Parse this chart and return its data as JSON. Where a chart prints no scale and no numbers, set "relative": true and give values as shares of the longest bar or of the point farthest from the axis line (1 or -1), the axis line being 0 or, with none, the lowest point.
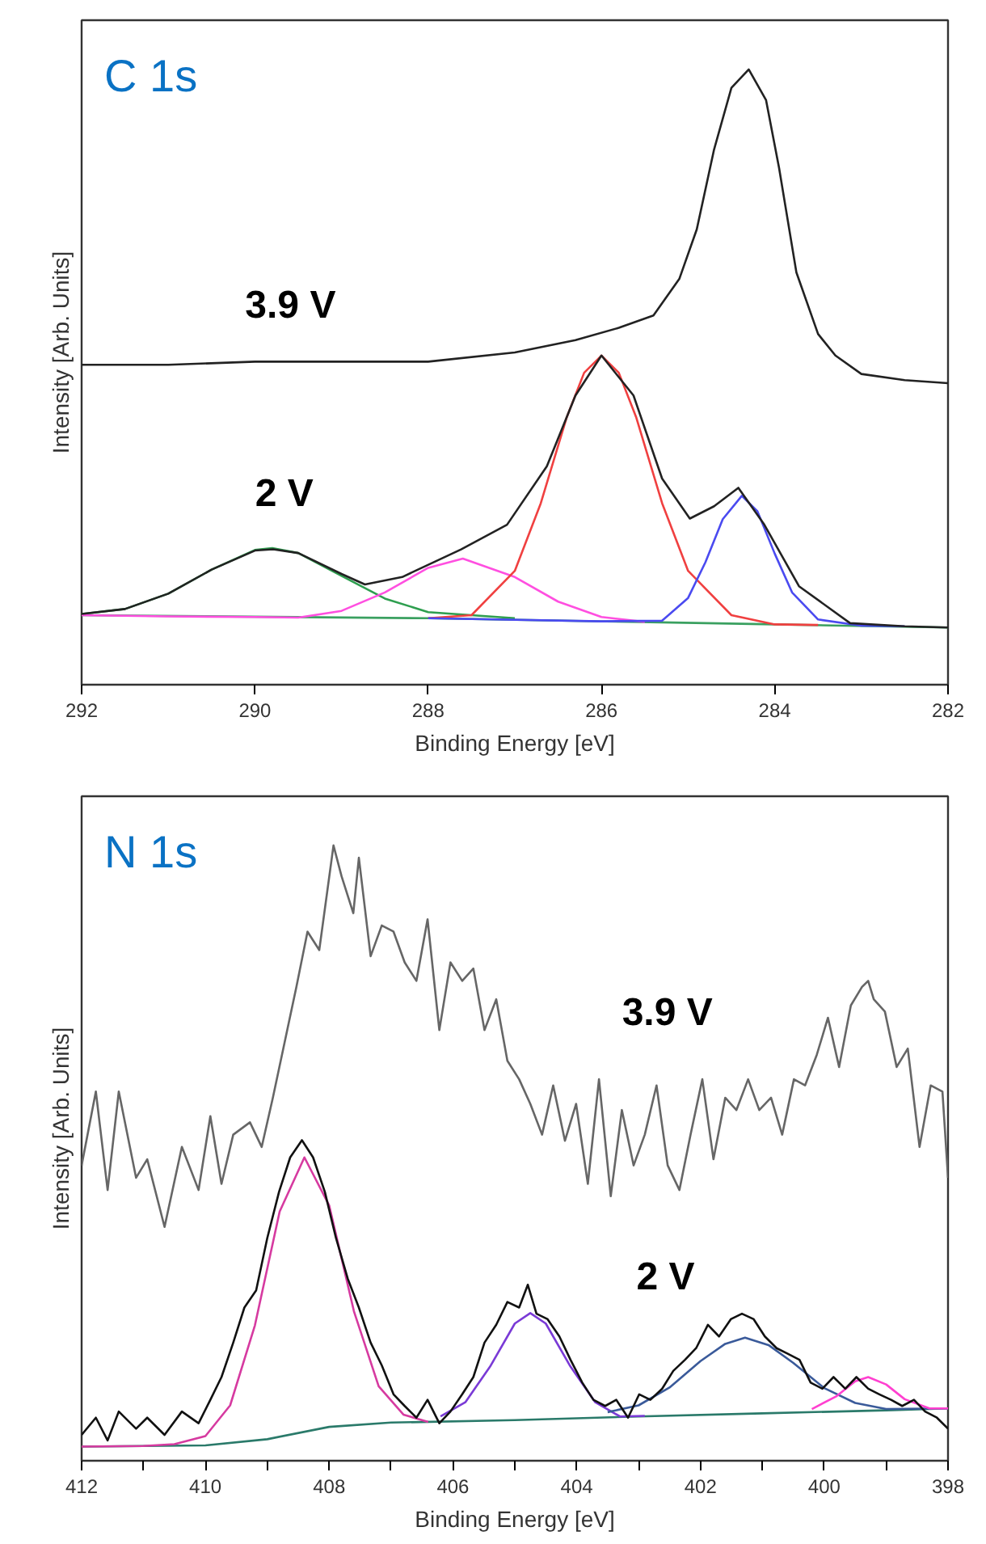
{
  "chart_data": [
    {
      "type": "line",
      "title": "C 1s",
      "xlabel": "Binding Energy [eV]",
      "ylabel": "Intensity [Arb. Units]",
      "relative": true,
      "tick_labels": "x",
      "xlim": [
        292,
        282
      ],
      "xticks": [
        292,
        290,
        288,
        286,
        284,
        282
      ],
      "series": [
        {
          "color": "#3aa060",
          "x": [
            292,
            288,
            284,
            282
          ],
          "values": [
            0.113,
            0.108,
            0.098,
            0.093
          ]
        },
        {
          "color": "#2e9e4f",
          "x": [
            292,
            291.5,
            291,
            290.5,
            290,
            289.8,
            289.5,
            289,
            288.5,
            288,
            287
          ],
          "values": [
            0.115,
            0.123,
            0.148,
            0.187,
            0.219,
            0.222,
            0.214,
            0.177,
            0.14,
            0.118,
            0.108
          ]
        },
        {
          "color": "#ff4fe0",
          "x": [
            292,
            291,
            290,
            289.5,
            289,
            288.5,
            288,
            287.6,
            287,
            286.5,
            286,
            285.5
          ],
          "values": [
            0.113,
            0.111,
            0.11,
            0.109,
            0.12,
            0.15,
            0.19,
            0.205,
            0.175,
            0.135,
            0.11,
            0.102
          ]
        },
        {
          "color": "#f04040",
          "x": [
            288,
            287.5,
            287,
            286.7,
            286.4,
            286.2,
            286,
            285.8,
            285.6,
            285.3,
            285,
            284.5,
            284,
            283.5
          ],
          "values": [
            0.108,
            0.113,
            0.185,
            0.295,
            0.435,
            0.507,
            0.535,
            0.507,
            0.435,
            0.295,
            0.185,
            0.113,
            0.098,
            0.097
          ]
        },
        {
          "color": "#4a4af0",
          "x": [
            288,
            286,
            285.3,
            285,
            284.8,
            284.6,
            284.38,
            284.2,
            284,
            283.8,
            283.5,
            283,
            282.5
          ],
          "values": [
            0.108,
            0.103,
            0.104,
            0.141,
            0.199,
            0.269,
            0.307,
            0.282,
            0.213,
            0.15,
            0.106,
            0.096,
            0.095
          ]
        },
        {
          "name": "3.9 V",
          "color": "#222222",
          "x": [
            292,
            291,
            290,
            289,
            288,
            287,
            286.3,
            285.8,
            285.4,
            285.1,
            284.9,
            284.7,
            284.5,
            284.3,
            284.1,
            283.95,
            283.75,
            283.5,
            283.3,
            283,
            282.5,
            282
          ],
          "values": [
            0.52,
            0.52,
            0.525,
            0.525,
            0.525,
            0.54,
            0.56,
            0.58,
            0.6,
            0.66,
            0.74,
            0.87,
            0.97,
            1.0,
            0.95,
            0.84,
            0.67,
            0.57,
            0.535,
            0.505,
            0.495,
            0.49
          ]
        },
        {
          "name": "2 V",
          "color": "#222222",
          "x": [
            292,
            291.5,
            291,
            290.5,
            290,
            289.79,
            289.5,
            289,
            288.73,
            288.3,
            287.62,
            287.09,
            286.63,
            286.3,
            286,
            285.63,
            285.3,
            284.98,
            284.7,
            284.42,
            284.12,
            283.72,
            283.13,
            282.5,
            282
          ],
          "values": [
            0.115,
            0.123,
            0.148,
            0.187,
            0.218,
            0.22,
            0.214,
            0.18,
            0.163,
            0.175,
            0.22,
            0.26,
            0.355,
            0.47,
            0.535,
            0.47,
            0.335,
            0.27,
            0.29,
            0.32,
            0.26,
            0.16,
            0.1,
            0.095,
            0.093
          ]
        }
      ]
    },
    {
      "type": "line",
      "title": "N 1s",
      "xlabel": "Binding Energy [eV]",
      "ylabel": "Intensity [Arb. Units]",
      "relative": true,
      "tick_labels": "x",
      "xlim": [
        412,
        398
      ],
      "xticks": [
        412,
        {
          "value": 411,
          "label": null
        },
        410,
        {
          "value": 409,
          "label": null
        },
        408,
        {
          "value": 407,
          "label": null
        },
        406,
        {
          "value": 405,
          "label": null
        },
        404,
        {
          "value": 403,
          "label": null
        },
        402,
        {
          "value": 401,
          "label": null
        },
        400,
        {
          "value": 399,
          "label": null
        },
        398
      ],
      "series": [
        {
          "color": "#2a7a6a",
          "x": [
            412,
            410,
            409,
            408,
            407,
            405,
            403,
            401,
            399,
            398
          ],
          "values": [
            0.023,
            0.025,
            0.035,
            0.055,
            0.062,
            0.066,
            0.072,
            0.077,
            0.082,
            0.085
          ]
        },
        {
          "color": "#d63aa0",
          "x": [
            412,
            411,
            410.5,
            410,
            409.6,
            409.2,
            408.8,
            408.4,
            408,
            407.6,
            407.2,
            406.8,
            406.4
          ],
          "values": [
            0.023,
            0.024,
            0.027,
            0.04,
            0.09,
            0.22,
            0.405,
            0.493,
            0.415,
            0.243,
            0.121,
            0.075,
            0.063
          ]
        },
        {
          "color": "#7a3ad6",
          "x": [
            406.2,
            405.8,
            405.4,
            405,
            404.75,
            404.5,
            404.1,
            403.7,
            403.3,
            402.9
          ],
          "values": [
            0.072,
            0.095,
            0.153,
            0.223,
            0.24,
            0.223,
            0.153,
            0.095,
            0.072,
            0.073
          ]
        },
        {
          "color": "#3a5a9a",
          "x": [
            403.5,
            403,
            402.5,
            402,
            401.6,
            401.28,
            400.9,
            400.5,
            400,
            399.5,
            399,
            398
          ],
          "values": [
            0.079,
            0.09,
            0.119,
            0.162,
            0.19,
            0.2,
            0.188,
            0.159,
            0.118,
            0.094,
            0.084,
            0.085
          ]
        },
        {
          "color": "#ff40d0",
          "x": [
            400.2,
            399.8,
            399.5,
            399.29,
            399,
            398.7,
            398.3,
            398
          ],
          "values": [
            0.084,
            0.105,
            0.129,
            0.136,
            0.124,
            0.1,
            0.085,
            0.085
          ]
        },
        {
          "name": "3.9 V",
          "color": "#666666",
          "x": [
            412,
            411.77,
            411.58,
            411.4,
            411.12,
            410.94,
            410.66,
            410.38,
            410.11,
            409.92,
            409.74,
            409.55,
            409.28,
            409.09,
            408.91,
            408.72,
            408.53,
            408.35,
            408.16,
            407.93,
            407.8,
            407.61,
            407.52,
            407.33,
            407.15,
            406.96,
            406.78,
            406.59,
            406.41,
            406.22,
            406.04,
            405.85,
            405.67,
            405.49,
            405.3,
            405.12,
            404.93,
            404.75,
            404.56,
            404.38,
            404.19,
            404.01,
            403.82,
            403.64,
            403.45,
            403.27,
            403.08,
            402.9,
            402.71,
            402.53,
            402.34,
            402.16,
            401.97,
            401.79,
            401.6,
            401.42,
            401.23,
            401.05,
            400.86,
            400.68,
            400.49,
            400.31,
            400.12,
            399.94,
            399.76,
            399.57,
            399.39,
            399.29,
            399.2,
            399.02,
            398.83,
            398.65,
            398.46,
            398.28,
            398.09,
            398.0
          ],
          "values": [
            0.48,
            0.6,
            0.44,
            0.6,
            0.46,
            0.49,
            0.38,
            0.51,
            0.44,
            0.56,
            0.45,
            0.53,
            0.55,
            0.51,
            0.59,
            0.68,
            0.77,
            0.86,
            0.83,
            1.0,
            0.95,
            0.89,
            0.98,
            0.82,
            0.87,
            0.86,
            0.81,
            0.78,
            0.88,
            0.7,
            0.81,
            0.78,
            0.8,
            0.7,
            0.75,
            0.65,
            0.62,
            0.58,
            0.53,
            0.61,
            0.52,
            0.58,
            0.45,
            0.62,
            0.43,
            0.57,
            0.48,
            0.53,
            0.61,
            0.48,
            0.44,
            0.53,
            0.62,
            0.49,
            0.59,
            0.57,
            0.62,
            0.57,
            0.59,
            0.53,
            0.62,
            0.61,
            0.66,
            0.72,
            0.64,
            0.74,
            0.77,
            0.78,
            0.75,
            0.73,
            0.64,
            0.67,
            0.51,
            0.61,
            0.6,
            0.46
          ]
        },
        {
          "name": "2 V",
          "color": "#111111",
          "x": [
            412,
            411.77,
            411.58,
            411.4,
            411.12,
            410.94,
            410.66,
            410.38,
            410.11,
            409.92,
            409.74,
            409.55,
            409.37,
            409.18,
            409.0,
            408.81,
            408.63,
            408.44,
            408.26,
            408.07,
            407.89,
            407.7,
            407.52,
            407.33,
            407.15,
            406.96,
            406.78,
            406.59,
            406.41,
            406.22,
            406.04,
            405.85,
            405.67,
            405.49,
            405.3,
            405.12,
            404.93,
            404.79,
            404.65,
            404.47,
            404.28,
            404.1,
            403.91,
            403.73,
            403.54,
            403.36,
            403.17,
            402.99,
            402.81,
            402.62,
            402.44,
            402.25,
            402.07,
            401.88,
            401.7,
            401.51,
            401.33,
            401.14,
            400.96,
            400.77,
            400.59,
            400.4,
            400.22,
            400.03,
            399.85,
            399.66,
            399.48,
            399.29,
            399.11,
            398.92,
            398.74,
            398.55,
            398.37,
            398.18,
            398.0
          ],
          "values": [
            0.042,
            0.07,
            0.033,
            0.08,
            0.052,
            0.07,
            0.042,
            0.08,
            0.061,
            0.099,
            0.136,
            0.192,
            0.249,
            0.277,
            0.362,
            0.437,
            0.493,
            0.521,
            0.493,
            0.437,
            0.362,
            0.296,
            0.249,
            0.192,
            0.155,
            0.108,
            0.089,
            0.07,
            0.099,
            0.061,
            0.08,
            0.108,
            0.136,
            0.192,
            0.221,
            0.258,
            0.249,
            0.286,
            0.239,
            0.23,
            0.202,
            0.164,
            0.127,
            0.099,
            0.089,
            0.099,
            0.07,
            0.108,
            0.099,
            0.117,
            0.146,
            0.164,
            0.183,
            0.221,
            0.202,
            0.23,
            0.239,
            0.23,
            0.202,
            0.183,
            0.174,
            0.164,
            0.127,
            0.117,
            0.136,
            0.117,
            0.136,
            0.117,
            0.108,
            0.099,
            0.089,
            0.099,
            0.08,
            0.07,
            0.052
          ]
        }
      ]
    }
  ]
}
